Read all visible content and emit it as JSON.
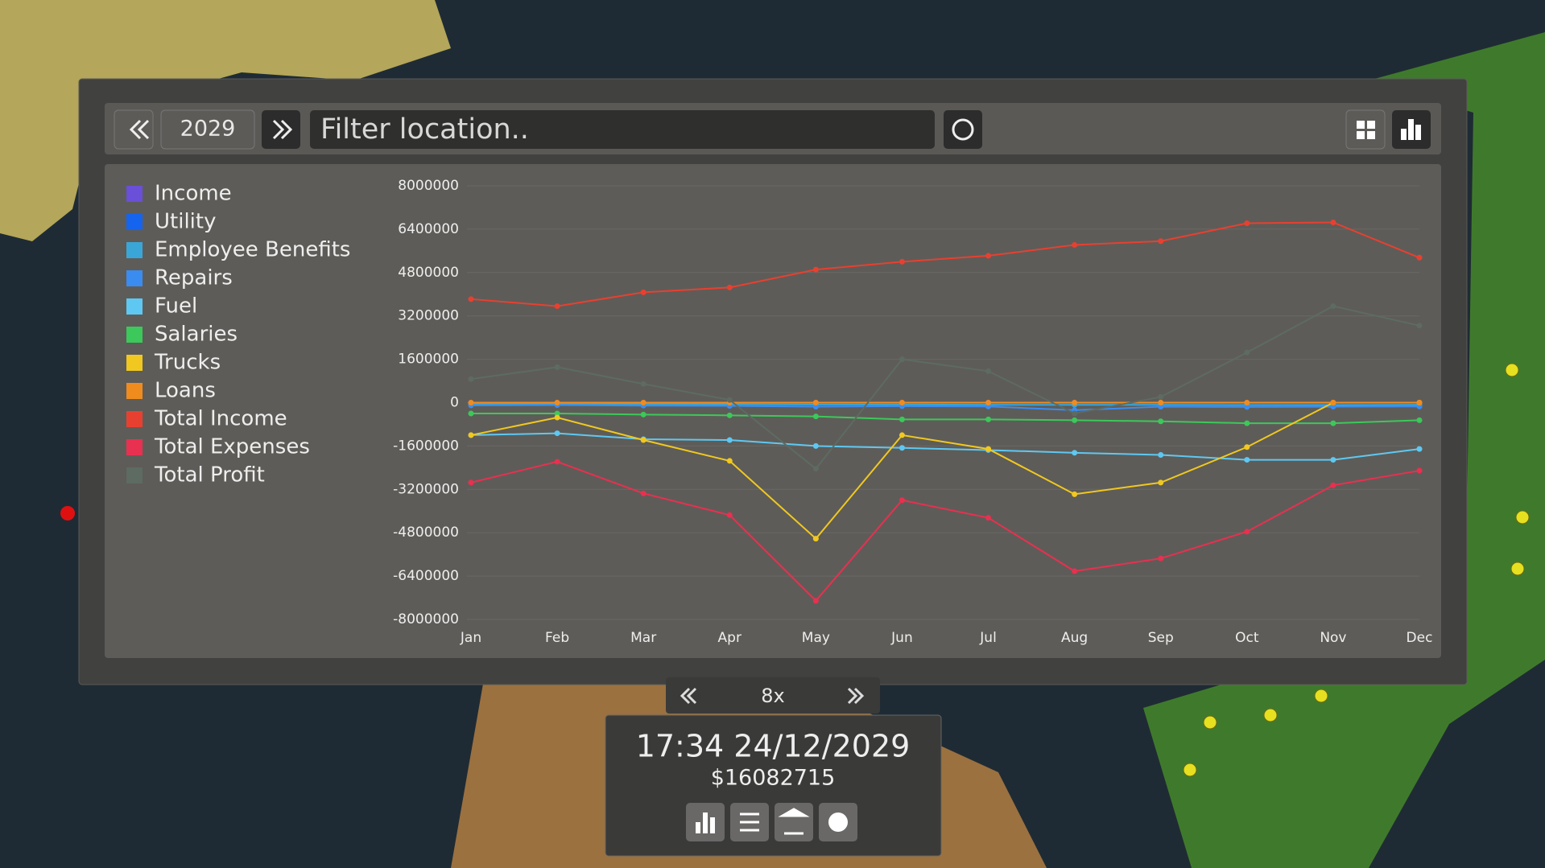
{
  "ui": {
    "year": "2029",
    "filter_placeholder": "Filter location..",
    "speed": "8x",
    "time": "17:34 24/12/2029",
    "money": "$16082715"
  },
  "chart_data": {
    "type": "line",
    "categories": [
      "Jan",
      "Feb",
      "Mar",
      "Apr",
      "May",
      "Jun",
      "Jul",
      "Aug",
      "Sep",
      "Oct",
      "Nov",
      "Dec"
    ],
    "ylim": [
      -8000000,
      8000000
    ],
    "yticks": [
      8000000,
      6400000,
      4800000,
      3200000,
      1600000,
      0,
      -1600000,
      -3200000,
      -4800000,
      -6400000,
      -8000000
    ],
    "grid": true,
    "series": [
      {
        "name": "Income",
        "color": "#6a4fd8",
        "values": [
          0,
          0,
          0,
          0,
          0,
          0,
          0,
          0,
          0,
          0,
          0,
          0
        ]
      },
      {
        "name": "Utility",
        "color": "#1464f0",
        "values": [
          -20000,
          -20000,
          -20000,
          -20000,
          -20000,
          -20000,
          -20000,
          -20000,
          -20000,
          -20000,
          -20000,
          -20000
        ]
      },
      {
        "name": "Employee Benefits",
        "color": "#3aa6d8",
        "values": [
          -50000,
          -50000,
          -60000,
          -60000,
          -70000,
          -70000,
          -80000,
          -80000,
          -80000,
          -90000,
          -90000,
          -80000
        ]
      },
      {
        "name": "Repairs",
        "color": "#3a8cf0",
        "values": [
          -100000,
          -90000,
          -110000,
          -120000,
          -150000,
          -130000,
          -140000,
          -280000,
          -150000,
          -160000,
          -150000,
          -140000
        ]
      },
      {
        "name": "Fuel",
        "color": "#5ec8f2",
        "values": [
          -1200000,
          -1130000,
          -1350000,
          -1380000,
          -1600000,
          -1670000,
          -1750000,
          -1850000,
          -1930000,
          -2110000,
          -2110000,
          -1710000
        ]
      },
      {
        "name": "Salaries",
        "color": "#3cc85a",
        "values": [
          -400000,
          -400000,
          -440000,
          -470000,
          -510000,
          -620000,
          -620000,
          -650000,
          -690000,
          -760000,
          -760000,
          -650000
        ]
      },
      {
        "name": "Trucks",
        "color": "#f0c820",
        "values": [
          -1200000,
          -550000,
          -1380000,
          -2150000,
          -5020000,
          -1200000,
          -1710000,
          -3380000,
          -2950000,
          -1640000,
          0,
          0
        ]
      },
      {
        "name": "Loans",
        "color": "#f08c1e",
        "values": [
          0,
          0,
          0,
          0,
          0,
          0,
          0,
          0,
          0,
          0,
          0,
          0
        ]
      },
      {
        "name": "Total Income",
        "color": "#e84030",
        "values": [
          3820000,
          3560000,
          4070000,
          4250000,
          4910000,
          5200000,
          5420000,
          5820000,
          5960000,
          6620000,
          6650000,
          5350000
        ]
      },
      {
        "name": "Total Expenses",
        "color": "#e83050",
        "values": [
          -2950000,
          -2180000,
          -3350000,
          -4150000,
          -7310000,
          -3600000,
          -4250000,
          -6220000,
          -5750000,
          -4760000,
          -3050000,
          -2510000
        ]
      },
      {
        "name": "Total Profit",
        "color": "#5d6b62",
        "values": [
          870000,
          1310000,
          690000,
          100000,
          -2440000,
          1600000,
          1160000,
          -400000,
          210000,
          1850000,
          3560000,
          2840000
        ]
      }
    ]
  }
}
